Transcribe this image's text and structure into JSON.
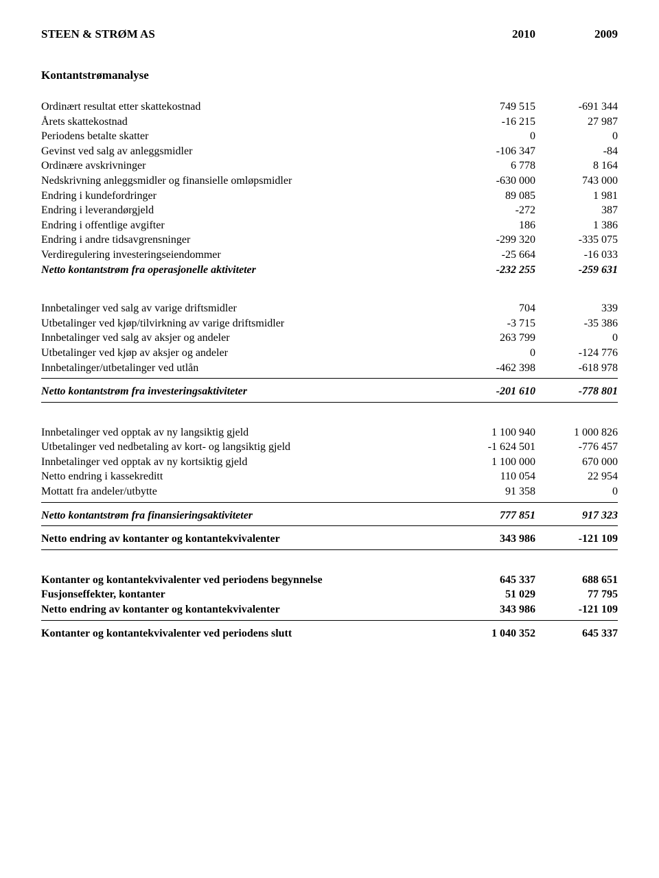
{
  "header": {
    "title": "STEEN & STRØM AS",
    "year1": "2010",
    "year2": "2009"
  },
  "section1_title": "Kontantstrømanalyse",
  "operations": {
    "rows": [
      {
        "label": "Ordinært resultat etter skattekostnad",
        "v1": "749 515",
        "v2": "-691 344"
      },
      {
        "label": "Årets skattekostnad",
        "v1": "-16 215",
        "v2": "27 987"
      },
      {
        "label": "Periodens betalte skatter",
        "v1": "0",
        "v2": "0"
      },
      {
        "label": "Gevinst ved salg av anleggsmidler",
        "v1": "-106 347",
        "v2": "-84"
      },
      {
        "label": "Ordinære avskrivninger",
        "v1": "6 778",
        "v2": "8 164"
      },
      {
        "label": "Nedskrivning anleggsmidler og finansielle omløpsmidler",
        "v1": "-630 000",
        "v2": "743 000"
      },
      {
        "label": "Endring i kundefordringer",
        "v1": "89 085",
        "v2": "1 981"
      },
      {
        "label": "Endring i leverandørgjeld",
        "v1": "-272",
        "v2": "387"
      },
      {
        "label": "Endring i offentlige avgifter",
        "v1": "186",
        "v2": "1 386"
      },
      {
        "label": "Endring i andre tidsavgrensninger",
        "v1": "-299 320",
        "v2": "-335 075"
      },
      {
        "label": "Verdiregulering investeringseiendommer",
        "v1": "-25 664",
        "v2": "-16 033"
      }
    ],
    "total": {
      "label": "Netto kontantstrøm fra operasjonelle aktiviteter",
      "v1": "-232 255",
      "v2": "-259 631"
    }
  },
  "investing": {
    "rows": [
      {
        "label": "Innbetalinger ved salg av varige driftsmidler",
        "v1": "704",
        "v2": "339"
      },
      {
        "label": "Utbetalinger ved kjøp/tilvirkning av varige driftsmidler",
        "v1": "-3 715",
        "v2": "-35 386"
      },
      {
        "label": "Innbetalinger ved salg av aksjer og andeler",
        "v1": "263 799",
        "v2": "0"
      },
      {
        "label": "Utbetalinger ved kjøp av aksjer og andeler",
        "v1": "0",
        "v2": "-124 776"
      },
      {
        "label": "Innbetalinger/utbetalinger ved utlån",
        "v1": "-462 398",
        "v2": "-618 978"
      }
    ],
    "total": {
      "label": "Netto kontantstrøm fra investeringsaktiviteter",
      "v1": "-201 610",
      "v2": "-778 801"
    }
  },
  "financing": {
    "rows": [
      {
        "label": "Innbetalinger ved opptak av ny langsiktig gjeld",
        "v1": "1 100 940",
        "v2": "1 000 826"
      },
      {
        "label": "Utbetalinger ved nedbetaling av kort- og langsiktig gjeld",
        "v1": "-1 624 501",
        "v2": "-776 457"
      },
      {
        "label": "Innbetalinger ved opptak av ny kortsiktig gjeld",
        "v1": "1 100 000",
        "v2": "670 000"
      },
      {
        "label": "Netto endring i kassekreditt",
        "v1": "110 054",
        "v2": "22 954"
      },
      {
        "label": "Mottatt fra andeler/utbytte",
        "v1": "91 358",
        "v2": "0"
      }
    ],
    "total": {
      "label": "Netto kontantstrøm fra finansieringsaktiviteter",
      "v1": "777 851",
      "v2": "917 323"
    }
  },
  "netchange": {
    "label": "Netto endring av kontanter og kontantekvivalenter",
    "v1": "343 986",
    "v2": "-121 109"
  },
  "ending": {
    "rows": [
      {
        "label": "Kontanter og kontantekvivalenter ved periodens begynnelse",
        "v1": "645 337",
        "v2": "688 651"
      },
      {
        "label": "Fusjonseffekter, kontanter",
        "v1": "51 029",
        "v2": "77 795"
      },
      {
        "label": "Netto endring av kontanter og kontantekvivalenter",
        "v1": "343 986",
        "v2": "-121 109"
      }
    ],
    "total": {
      "label": "Kontanter og kontantekvivalenter ved periodens slutt",
      "v1": "1 040 352",
      "v2": "645 337"
    }
  }
}
